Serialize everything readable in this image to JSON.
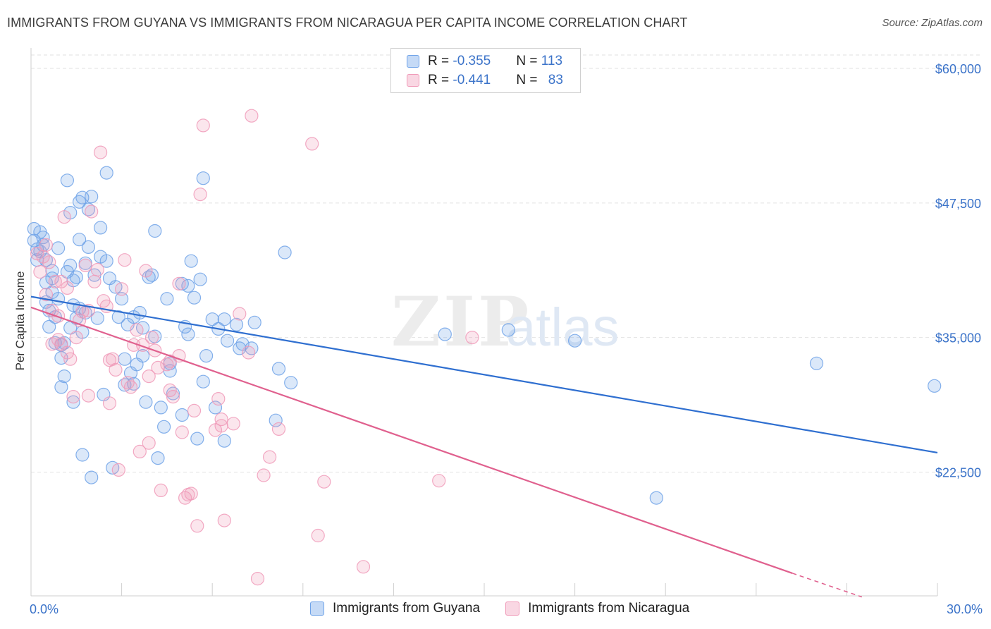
{
  "title": "IMMIGRANTS FROM GUYANA VS IMMIGRANTS FROM NICARAGUA PER CAPITA INCOME CORRELATION CHART",
  "source": "Source: ZipAtlas.com",
  "watermark": {
    "zip": "ZIP",
    "atlas": "atlas"
  },
  "legend": {
    "rows": [
      {
        "r_label": "R = ",
        "r_value": "-0.355",
        "n_label": "N = ",
        "n_value": "113",
        "color": "#6ea2e8"
      },
      {
        "r_label": "R = ",
        "r_value": "-0.441",
        "n_label": "N = ",
        "n_value": "83",
        "color": "#f09ab8"
      }
    ]
  },
  "bottom_legend": [
    {
      "label": "Immigrants from Guyana",
      "color": "#6ea2e8"
    },
    {
      "label": "Immigrants from Nicaragua",
      "color": "#f09ab8"
    }
  ],
  "chart_data": {
    "type": "scatter",
    "ylabel": "Per Capita Income",
    "xlim": [
      0,
      30
    ],
    "ylim": [
      11000,
      62000
    ],
    "x_tick_labels": [
      "0.0%",
      "30.0%"
    ],
    "y_ticks": [
      {
        "value": 60000,
        "label": "$60,000"
      },
      {
        "value": 47500,
        "label": "$47,500"
      },
      {
        "value": 35000,
        "label": "$35,000"
      },
      {
        "value": 22500,
        "label": "$22,500"
      }
    ],
    "grid": true,
    "series": [
      {
        "name": "Immigrants from Guyana",
        "color": "#6ea2e8",
        "line_color": "#2f6fd0",
        "trend": {
          "x0": 0,
          "y0": 38800,
          "x1": 30,
          "y1": 24300
        },
        "points": [
          [
            0.1,
            45100
          ],
          [
            0.1,
            44000
          ],
          [
            0.2,
            43200
          ],
          [
            0.2,
            42200
          ],
          [
            0.3,
            44800
          ],
          [
            0.3,
            43000
          ],
          [
            0.4,
            44300
          ],
          [
            0.4,
            43600
          ],
          [
            0.5,
            42200
          ],
          [
            0.5,
            38300
          ],
          [
            0.5,
            40100
          ],
          [
            0.6,
            37500
          ],
          [
            0.6,
            36000
          ],
          [
            0.7,
            39200
          ],
          [
            0.7,
            41200
          ],
          [
            0.7,
            40500
          ],
          [
            0.8,
            36900
          ],
          [
            0.8,
            34500
          ],
          [
            0.9,
            38600
          ],
          [
            0.9,
            43300
          ],
          [
            1.0,
            33100
          ],
          [
            1.0,
            34300
          ],
          [
            1.0,
            30400
          ],
          [
            1.1,
            34500
          ],
          [
            1.1,
            31400
          ],
          [
            1.2,
            49600
          ],
          [
            1.2,
            41100
          ],
          [
            1.3,
            35900
          ],
          [
            1.3,
            41700
          ],
          [
            1.3,
            46600
          ],
          [
            1.4,
            38000
          ],
          [
            1.4,
            40300
          ],
          [
            1.4,
            29000
          ],
          [
            1.5,
            36800
          ],
          [
            1.5,
            40600
          ],
          [
            1.6,
            37700
          ],
          [
            1.6,
            44100
          ],
          [
            1.6,
            47600
          ],
          [
            1.7,
            24100
          ],
          [
            1.7,
            48000
          ],
          [
            1.7,
            35500
          ],
          [
            1.8,
            41900
          ],
          [
            1.8,
            37300
          ],
          [
            1.9,
            46900
          ],
          [
            1.9,
            43400
          ],
          [
            2.0,
            48100
          ],
          [
            2.0,
            22000
          ],
          [
            2.1,
            40800
          ],
          [
            2.2,
            36800
          ],
          [
            2.3,
            45200
          ],
          [
            2.3,
            42500
          ],
          [
            2.4,
            29700
          ],
          [
            2.5,
            50300
          ],
          [
            2.5,
            42100
          ],
          [
            2.6,
            40500
          ],
          [
            2.7,
            22900
          ],
          [
            2.8,
            39700
          ],
          [
            2.9,
            36900
          ],
          [
            3.0,
            38600
          ],
          [
            3.1,
            33000
          ],
          [
            3.1,
            30600
          ],
          [
            3.2,
            36200
          ],
          [
            3.3,
            31700
          ],
          [
            3.4,
            36900
          ],
          [
            3.4,
            30700
          ],
          [
            3.5,
            32500
          ],
          [
            3.6,
            37300
          ],
          [
            3.7,
            33300
          ],
          [
            3.7,
            35900
          ],
          [
            3.8,
            29000
          ],
          [
            3.9,
            40600
          ],
          [
            4.0,
            40800
          ],
          [
            4.1,
            44900
          ],
          [
            4.1,
            35100
          ],
          [
            4.2,
            23800
          ],
          [
            4.3,
            28500
          ],
          [
            4.4,
            26700
          ],
          [
            4.5,
            38600
          ],
          [
            4.6,
            32600
          ],
          [
            4.6,
            31900
          ],
          [
            4.7,
            29800
          ],
          [
            5.0,
            40000
          ],
          [
            5.0,
            27800
          ],
          [
            5.1,
            36000
          ],
          [
            5.2,
            35300
          ],
          [
            5.2,
            39800
          ],
          [
            5.3,
            42100
          ],
          [
            5.4,
            38700
          ],
          [
            5.5,
            25600
          ],
          [
            5.6,
            40400
          ],
          [
            5.7,
            30900
          ],
          [
            5.7,
            49800
          ],
          [
            5.8,
            33300
          ],
          [
            6.0,
            36700
          ],
          [
            6.2,
            35800
          ],
          [
            6.1,
            28500
          ],
          [
            6.4,
            36700
          ],
          [
            6.4,
            25400
          ],
          [
            6.5,
            34700
          ],
          [
            6.8,
            36200
          ],
          [
            6.9,
            34000
          ],
          [
            7.0,
            34400
          ],
          [
            7.3,
            34000
          ],
          [
            7.4,
            36400
          ],
          [
            8.1,
            27300
          ],
          [
            8.2,
            32100
          ],
          [
            8.4,
            42900
          ],
          [
            8.6,
            30800
          ],
          [
            13.7,
            35300
          ],
          [
            15.8,
            35700
          ],
          [
            18.0,
            34700
          ],
          [
            20.7,
            20100
          ],
          [
            26.0,
            32600
          ],
          [
            29.9,
            30500
          ]
        ]
      },
      {
        "name": "Immigrants from Nicaragua",
        "color": "#f09ab8",
        "line_color": "#e0608e",
        "trend": {
          "x0": 0,
          "y0": 37800,
          "x1": 25.2,
          "y1": 13100
        },
        "trend_dash": {
          "x0": 25.2,
          "y0": 13100,
          "x1": 27.5,
          "y1": 10900
        },
        "points": [
          [
            0.2,
            42800
          ],
          [
            0.3,
            41100
          ],
          [
            0.4,
            42500
          ],
          [
            0.5,
            39000
          ],
          [
            0.5,
            43600
          ],
          [
            0.6,
            42000
          ],
          [
            0.7,
            34400
          ],
          [
            0.7,
            37500
          ],
          [
            0.8,
            40200
          ],
          [
            0.9,
            37000
          ],
          [
            0.9,
            34800
          ],
          [
            1.0,
            40200
          ],
          [
            1.0,
            34400
          ],
          [
            1.1,
            46200
          ],
          [
            1.2,
            39600
          ],
          [
            1.2,
            33600
          ],
          [
            1.3,
            33000
          ],
          [
            1.4,
            29500
          ],
          [
            1.5,
            35000
          ],
          [
            1.6,
            36600
          ],
          [
            1.7,
            37400
          ],
          [
            1.8,
            41700
          ],
          [
            1.9,
            29600
          ],
          [
            1.9,
            37500
          ],
          [
            2.0,
            46700
          ],
          [
            2.1,
            40200
          ],
          [
            2.2,
            41300
          ],
          [
            2.3,
            52200
          ],
          [
            2.4,
            38400
          ],
          [
            2.5,
            37900
          ],
          [
            2.6,
            28900
          ],
          [
            2.6,
            32900
          ],
          [
            2.7,
            33000
          ],
          [
            2.8,
            32000
          ],
          [
            2.9,
            22700
          ],
          [
            3.0,
            39500
          ],
          [
            3.1,
            42200
          ],
          [
            3.2,
            30800
          ],
          [
            3.3,
            30400
          ],
          [
            3.4,
            34300
          ],
          [
            3.5,
            35700
          ],
          [
            3.6,
            24400
          ],
          [
            3.7,
            34300
          ],
          [
            3.8,
            41200
          ],
          [
            3.9,
            31400
          ],
          [
            3.9,
            25200
          ],
          [
            4.0,
            35000
          ],
          [
            4.1,
            33800
          ],
          [
            4.2,
            32200
          ],
          [
            4.3,
            20800
          ],
          [
            4.5,
            32500
          ],
          [
            4.6,
            30100
          ],
          [
            4.6,
            32800
          ],
          [
            4.7,
            29500
          ],
          [
            4.9,
            33300
          ],
          [
            4.9,
            40000
          ],
          [
            5.0,
            26200
          ],
          [
            5.1,
            20100
          ],
          [
            5.2,
            20400
          ],
          [
            5.3,
            20500
          ],
          [
            5.4,
            28200
          ],
          [
            5.5,
            17500
          ],
          [
            5.6,
            48300
          ],
          [
            5.7,
            54700
          ],
          [
            6.1,
            26400
          ],
          [
            6.2,
            29300
          ],
          [
            6.3,
            26800
          ],
          [
            6.3,
            27400
          ],
          [
            6.4,
            18000
          ],
          [
            6.7,
            27000
          ],
          [
            6.9,
            37200
          ],
          [
            7.2,
            33600
          ],
          [
            7.3,
            55600
          ],
          [
            7.5,
            12600
          ],
          [
            7.7,
            22200
          ],
          [
            7.9,
            23900
          ],
          [
            8.2,
            26500
          ],
          [
            9.3,
            53000
          ],
          [
            9.5,
            16600
          ],
          [
            9.7,
            21600
          ],
          [
            11.0,
            13700
          ],
          [
            13.5,
            21700
          ],
          [
            14.6,
            35000
          ]
        ]
      }
    ]
  }
}
